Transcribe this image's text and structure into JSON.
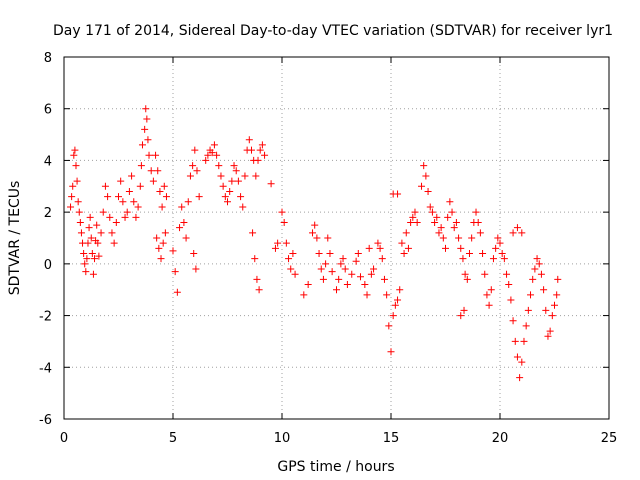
{
  "chart_data": {
    "type": "scatter",
    "title": "Day 171 of 2014, Sidereal Day-to-day VTEC variation (SDTVAR) for receiver lyr1",
    "xlabel": "GPS time / hours",
    "ylabel": "SDTVAR / TECUs",
    "xlim": [
      0,
      25
    ],
    "ylim": [
      -6,
      8
    ],
    "xticks": [
      "0",
      "5",
      "10",
      "15",
      "20",
      "25"
    ],
    "yticks": [
      "-6",
      "-4",
      "-2",
      "0",
      "2",
      "4",
      "6",
      "8"
    ],
    "grid": true,
    "marker": "+",
    "color": "#ff0000",
    "series": [
      {
        "name": "SDTVAR",
        "points": [
          [
            0.3,
            2.2
          ],
          [
            0.35,
            2.6
          ],
          [
            0.4,
            3.0
          ],
          [
            0.45,
            4.2
          ],
          [
            0.5,
            4.4
          ],
          [
            0.55,
            3.8
          ],
          [
            0.6,
            3.2
          ],
          [
            0.65,
            2.4
          ],
          [
            0.7,
            2.0
          ],
          [
            0.75,
            1.6
          ],
          [
            0.8,
            1.2
          ],
          [
            0.85,
            0.8
          ],
          [
            0.9,
            0.4
          ],
          [
            0.95,
            0.0
          ],
          [
            1.0,
            -0.3
          ],
          [
            1.05,
            0.2
          ],
          [
            1.1,
            0.8
          ],
          [
            1.15,
            1.4
          ],
          [
            1.2,
            1.8
          ],
          [
            1.25,
            1.0
          ],
          [
            1.3,
            0.4
          ],
          [
            1.35,
            -0.4
          ],
          [
            1.4,
            0.2
          ],
          [
            1.45,
            0.9
          ],
          [
            1.5,
            1.5
          ],
          [
            1.55,
            0.8
          ],
          [
            1.6,
            0.3
          ],
          [
            1.7,
            1.2
          ],
          [
            1.8,
            2.0
          ],
          [
            1.9,
            3.0
          ],
          [
            2.0,
            2.6
          ],
          [
            2.1,
            1.8
          ],
          [
            2.2,
            1.2
          ],
          [
            2.3,
            0.8
          ],
          [
            2.4,
            1.6
          ],
          [
            2.5,
            2.6
          ],
          [
            2.6,
            3.2
          ],
          [
            2.7,
            2.4
          ],
          [
            2.8,
            1.8
          ],
          [
            2.9,
            2.0
          ],
          [
            3.0,
            2.8
          ],
          [
            3.1,
            3.4
          ],
          [
            3.2,
            2.4
          ],
          [
            3.3,
            1.8
          ],
          [
            3.4,
            2.2
          ],
          [
            3.5,
            3.0
          ],
          [
            3.55,
            3.8
          ],
          [
            3.6,
            4.6
          ],
          [
            3.7,
            5.2
          ],
          [
            3.75,
            6.0
          ],
          [
            3.8,
            5.6
          ],
          [
            3.85,
            4.8
          ],
          [
            3.9,
            4.2
          ],
          [
            4.0,
            3.6
          ],
          [
            4.1,
            3.2
          ],
          [
            4.2,
            4.2
          ],
          [
            4.3,
            3.6
          ],
          [
            4.4,
            2.8
          ],
          [
            4.5,
            2.2
          ],
          [
            4.6,
            3.0
          ],
          [
            4.7,
            2.6
          ],
          [
            4.25,
            1.0
          ],
          [
            4.35,
            0.6
          ],
          [
            4.45,
            0.2
          ],
          [
            4.55,
            0.8
          ],
          [
            4.65,
            1.2
          ],
          [
            5.0,
            0.5
          ],
          [
            5.1,
            -0.3
          ],
          [
            5.2,
            -1.1
          ],
          [
            5.3,
            1.4
          ],
          [
            5.4,
            2.2
          ],
          [
            5.5,
            1.6
          ],
          [
            5.6,
            1.0
          ],
          [
            5.7,
            2.4
          ],
          [
            5.8,
            3.4
          ],
          [
            5.9,
            3.8
          ],
          [
            6.0,
            4.4
          ],
          [
            6.1,
            3.6
          ],
          [
            6.2,
            2.6
          ],
          [
            5.95,
            0.4
          ],
          [
            6.05,
            -0.2
          ],
          [
            6.5,
            4.0
          ],
          [
            6.6,
            4.2
          ],
          [
            6.7,
            4.4
          ],
          [
            6.8,
            4.3
          ],
          [
            6.9,
            4.6
          ],
          [
            7.0,
            4.2
          ],
          [
            7.1,
            3.8
          ],
          [
            7.2,
            3.4
          ],
          [
            7.3,
            3.0
          ],
          [
            7.4,
            2.6
          ],
          [
            7.5,
            2.4
          ],
          [
            7.6,
            2.8
          ],
          [
            7.7,
            3.2
          ],
          [
            7.8,
            3.8
          ],
          [
            7.9,
            3.6
          ],
          [
            8.0,
            3.2
          ],
          [
            8.1,
            2.6
          ],
          [
            8.2,
            2.2
          ],
          [
            8.3,
            3.4
          ],
          [
            8.4,
            4.4
          ],
          [
            8.5,
            4.8
          ],
          [
            8.6,
            4.4
          ],
          [
            8.7,
            4.0
          ],
          [
            8.8,
            3.4
          ],
          [
            8.9,
            4.0
          ],
          [
            9.0,
            4.4
          ],
          [
            9.1,
            4.6
          ],
          [
            9.2,
            4.2
          ],
          [
            8.65,
            1.2
          ],
          [
            8.75,
            0.2
          ],
          [
            8.85,
            -0.6
          ],
          [
            8.95,
            -1.0
          ],
          [
            9.5,
            3.1
          ],
          [
            9.7,
            0.6
          ],
          [
            9.8,
            0.8
          ],
          [
            10.0,
            2.0
          ],
          [
            10.1,
            1.6
          ],
          [
            10.2,
            0.8
          ],
          [
            10.3,
            0.2
          ],
          [
            10.4,
            -0.2
          ],
          [
            10.5,
            0.4
          ],
          [
            10.6,
            -0.4
          ],
          [
            11.0,
            -1.2
          ],
          [
            11.2,
            -0.8
          ],
          [
            11.4,
            1.2
          ],
          [
            11.5,
            1.5
          ],
          [
            11.6,
            1.0
          ],
          [
            11.7,
            0.4
          ],
          [
            11.8,
            -0.2
          ],
          [
            11.9,
            -0.6
          ],
          [
            12.0,
            0.0
          ],
          [
            12.1,
            1.0
          ],
          [
            12.2,
            0.4
          ],
          [
            12.3,
            -0.3
          ],
          [
            12.5,
            -1.0
          ],
          [
            12.6,
            -0.6
          ],
          [
            12.7,
            0.0
          ],
          [
            12.8,
            0.2
          ],
          [
            12.9,
            -0.2
          ],
          [
            13.0,
            -0.8
          ],
          [
            13.2,
            -0.4
          ],
          [
            13.4,
            0.1
          ],
          [
            13.5,
            0.4
          ],
          [
            13.6,
            -0.5
          ],
          [
            13.8,
            -0.8
          ],
          [
            13.9,
            -1.2
          ],
          [
            14.0,
            0.6
          ],
          [
            14.1,
            -0.4
          ],
          [
            14.2,
            -0.2
          ],
          [
            14.4,
            0.8
          ],
          [
            14.5,
            0.6
          ],
          [
            14.6,
            0.2
          ],
          [
            14.7,
            -0.6
          ],
          [
            14.8,
            -1.2
          ],
          [
            14.9,
            -2.4
          ],
          [
            15.0,
            -3.4
          ],
          [
            15.1,
            -2.0
          ],
          [
            15.2,
            -1.6
          ],
          [
            15.3,
            -1.4
          ],
          [
            15.4,
            -1.0
          ],
          [
            15.5,
            0.8
          ],
          [
            15.6,
            0.4
          ],
          [
            15.7,
            1.2
          ],
          [
            15.8,
            0.6
          ],
          [
            15.9,
            1.6
          ],
          [
            16.0,
            1.8
          ],
          [
            16.1,
            2.0
          ],
          [
            16.2,
            1.6
          ],
          [
            16.4,
            3.0
          ],
          [
            16.5,
            3.8
          ],
          [
            16.6,
            3.4
          ],
          [
            16.7,
            2.8
          ],
          [
            16.8,
            2.2
          ],
          [
            15.1,
            2.7
          ],
          [
            15.3,
            2.7
          ],
          [
            16.9,
            2.0
          ],
          [
            17.0,
            1.6
          ],
          [
            17.1,
            1.8
          ],
          [
            17.2,
            1.2
          ],
          [
            17.3,
            1.4
          ],
          [
            17.4,
            1.0
          ],
          [
            17.5,
            0.6
          ],
          [
            17.6,
            1.8
          ],
          [
            17.7,
            2.4
          ],
          [
            17.8,
            2.0
          ],
          [
            17.9,
            1.4
          ],
          [
            18.0,
            1.6
          ],
          [
            18.1,
            1.0
          ],
          [
            18.2,
            0.6
          ],
          [
            18.3,
            0.2
          ],
          [
            18.4,
            -0.4
          ],
          [
            18.5,
            -0.6
          ],
          [
            18.6,
            0.4
          ],
          [
            18.7,
            1.0
          ],
          [
            18.8,
            1.6
          ],
          [
            18.9,
            2.0
          ],
          [
            19.0,
            1.6
          ],
          [
            19.1,
            1.2
          ],
          [
            19.2,
            0.4
          ],
          [
            19.3,
            -0.4
          ],
          [
            19.4,
            -1.2
          ],
          [
            19.5,
            -1.6
          ],
          [
            19.6,
            -1.0
          ],
          [
            19.7,
            0.2
          ],
          [
            19.8,
            0.6
          ],
          [
            19.9,
            1.0
          ],
          [
            20.0,
            0.8
          ],
          [
            20.1,
            0.4
          ],
          [
            20.2,
            0.2
          ],
          [
            20.3,
            -0.4
          ],
          [
            20.4,
            -0.8
          ],
          [
            20.5,
            -1.4
          ],
          [
            20.6,
            -2.2
          ],
          [
            20.7,
            -3.0
          ],
          [
            20.8,
            -3.6
          ],
          [
            20.9,
            -4.4
          ],
          [
            21.0,
            -3.8
          ],
          [
            21.1,
            -3.0
          ],
          [
            21.2,
            -2.4
          ],
          [
            21.3,
            -1.8
          ],
          [
            21.4,
            -1.2
          ],
          [
            21.5,
            -0.6
          ],
          [
            21.6,
            -0.2
          ],
          [
            21.7,
            0.2
          ],
          [
            21.8,
            0.0
          ],
          [
            21.9,
            -0.4
          ],
          [
            22.0,
            -1.0
          ],
          [
            22.1,
            -1.8
          ],
          [
            22.2,
            -2.8
          ],
          [
            22.3,
            -2.6
          ],
          [
            22.4,
            -2.0
          ],
          [
            22.5,
            -1.6
          ],
          [
            22.6,
            -1.2
          ],
          [
            22.65,
            -0.6
          ],
          [
            20.6,
            1.2
          ],
          [
            20.8,
            1.4
          ],
          [
            21.0,
            1.2
          ],
          [
            18.2,
            -2.0
          ],
          [
            18.35,
            -1.8
          ]
        ]
      }
    ]
  }
}
